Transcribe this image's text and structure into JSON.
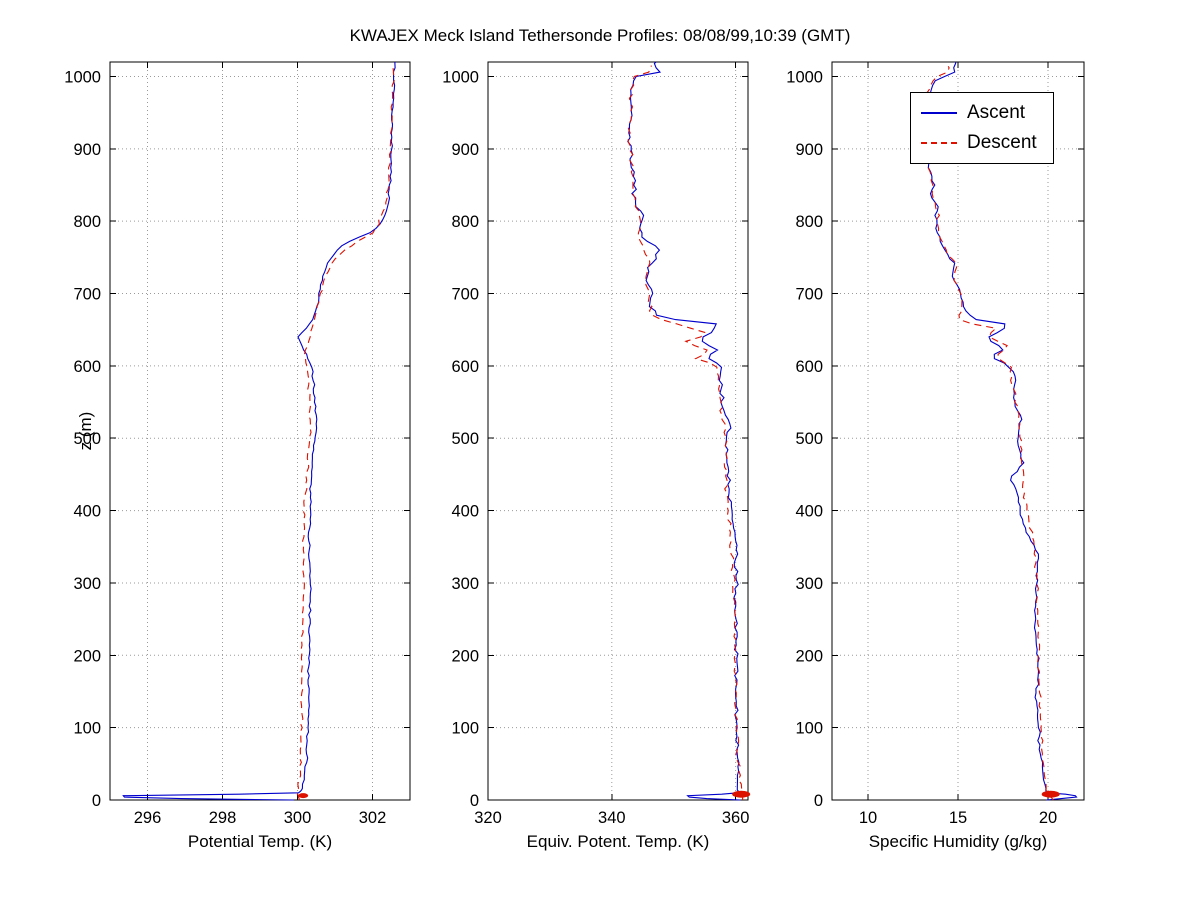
{
  "title": "KWAJEX Meck Island Tethersonde Profiles: 08/08/99,10:39 (GMT)",
  "ylabel": "z (m)",
  "ylim": [
    0,
    1020
  ],
  "yticks": [
    0,
    100,
    200,
    300,
    400,
    500,
    600,
    700,
    800,
    900,
    1000
  ],
  "legend": {
    "ascent": "Ascent",
    "descent": "Descent",
    "position": "upper-right-panel-3"
  },
  "colors": {
    "ascent": "#0000cc",
    "descent": "#dd1100",
    "grid": "#9a9a9a",
    "axis": "#000000"
  },
  "chart_data": [
    {
      "type": "line",
      "id": "potential-temp",
      "xlabel": "Potential Temp. (K)",
      "xlim": [
        295,
        303
      ],
      "xticks": [
        296,
        298,
        300,
        302
      ],
      "grid": true,
      "noise": 0.04,
      "series": [
        {
          "key": "ascent",
          "name": "Ascent",
          "style": "solid",
          "points": [
            [
              0,
              299.9
            ],
            [
              3,
              295.4
            ],
            [
              6,
              295.35
            ],
            [
              9,
              300.0
            ],
            [
              15,
              300.15
            ],
            [
              60,
              300.25
            ],
            [
              120,
              300.3
            ],
            [
              180,
              300.3
            ],
            [
              240,
              300.32
            ],
            [
              300,
              300.35
            ],
            [
              360,
              300.3
            ],
            [
              420,
              300.35
            ],
            [
              480,
              300.42
            ],
            [
              520,
              300.5
            ],
            [
              560,
              300.45
            ],
            [
              600,
              300.38
            ],
            [
              625,
              300.15
            ],
            [
              640,
              300.02
            ],
            [
              655,
              300.3
            ],
            [
              670,
              300.45
            ],
            [
              690,
              300.55
            ],
            [
              710,
              300.62
            ],
            [
              730,
              300.72
            ],
            [
              750,
              300.9
            ],
            [
              765,
              301.15
            ],
            [
              775,
              301.5
            ],
            [
              785,
              301.95
            ],
            [
              795,
              302.2
            ],
            [
              810,
              302.35
            ],
            [
              840,
              302.45
            ],
            [
              880,
              302.5
            ],
            [
              920,
              302.52
            ],
            [
              960,
              302.55
            ],
            [
              1000,
              302.58
            ],
            [
              1020,
              302.6
            ]
          ]
        },
        {
          "key": "descent",
          "name": "Descent",
          "style": "dashed",
          "points": [
            [
              0,
              300.05
            ],
            [
              8,
              300.0
            ],
            [
              30,
              300.05
            ],
            [
              80,
              300.1
            ],
            [
              150,
              300.12
            ],
            [
              220,
              300.12
            ],
            [
              300,
              300.18
            ],
            [
              360,
              300.15
            ],
            [
              420,
              300.2
            ],
            [
              470,
              300.28
            ],
            [
              510,
              300.35
            ],
            [
              550,
              300.32
            ],
            [
              590,
              300.28
            ],
            [
              615,
              300.18
            ],
            [
              635,
              300.3
            ],
            [
              655,
              300.42
            ],
            [
              675,
              300.5
            ],
            [
              695,
              300.6
            ],
            [
              715,
              300.7
            ],
            [
              735,
              300.85
            ],
            [
              750,
              301.05
            ],
            [
              762,
              301.3
            ],
            [
              772,
              301.6
            ],
            [
              782,
              301.95
            ],
            [
              795,
              302.15
            ],
            [
              815,
              302.3
            ],
            [
              845,
              302.42
            ],
            [
              885,
              302.48
            ],
            [
              925,
              302.5
            ],
            [
              965,
              302.53
            ],
            [
              1005,
              302.56
            ],
            [
              1015,
              302.58
            ]
          ]
        }
      ],
      "markers": [
        {
          "series": "descent",
          "x": 300.15,
          "z": 6,
          "rx": 5,
          "ry": 2.5
        }
      ]
    },
    {
      "type": "line",
      "id": "equiv-potent-temp",
      "xlabel": "Equiv. Potent. Temp. (K)",
      "xlim": [
        320,
        362
      ],
      "xticks": [
        320,
        340,
        360
      ],
      "grid": true,
      "noise": 0.4,
      "series": [
        {
          "key": "ascent",
          "name": "Ascent",
          "style": "solid",
          "points": [
            [
              0,
              360.8
            ],
            [
              3,
              352.5
            ],
            [
              6,
              352.3
            ],
            [
              9,
              360.4
            ],
            [
              20,
              360.4
            ],
            [
              80,
              360.2
            ],
            [
              140,
              360.1
            ],
            [
              200,
              360.2
            ],
            [
              260,
              359.9
            ],
            [
              320,
              360.1
            ],
            [
              350,
              360.2
            ],
            [
              380,
              359.6
            ],
            [
              410,
              359.2
            ],
            [
              440,
              358.9
            ],
            [
              470,
              358.6
            ],
            [
              500,
              358.5
            ],
            [
              515,
              359.4
            ],
            [
              535,
              358.2
            ],
            [
              560,
              357.8
            ],
            [
              585,
              357.6
            ],
            [
              600,
              357.9
            ],
            [
              612,
              355.2
            ],
            [
              622,
              357.1
            ],
            [
              636,
              354.1
            ],
            [
              648,
              356.6
            ],
            [
              658,
              357.2
            ],
            [
              664,
              350.2
            ],
            [
              670,
              347.2
            ],
            [
              682,
              346.2
            ],
            [
              700,
              346.6
            ],
            [
              718,
              345.6
            ],
            [
              736,
              346.1
            ],
            [
              752,
              347.3
            ],
            [
              764,
              347.6
            ],
            [
              776,
              345.2
            ],
            [
              790,
              344.6
            ],
            [
              806,
              344.9
            ],
            [
              822,
              344.0
            ],
            [
              838,
              343.6
            ],
            [
              856,
              343.9
            ],
            [
              874,
              343.3
            ],
            [
              892,
              343.1
            ],
            [
              910,
              342.7
            ],
            [
              930,
              342.9
            ],
            [
              950,
              343.2
            ],
            [
              970,
              343.0
            ],
            [
              990,
              343.3
            ],
            [
              1000,
              343.6
            ],
            [
              1006,
              347.5
            ],
            [
              1014,
              347.0
            ],
            [
              1020,
              347.2
            ]
          ]
        },
        {
          "key": "descent",
          "name": "Descent",
          "style": "dashed",
          "points": [
            [
              0,
              361.2
            ],
            [
              10,
              361.0
            ],
            [
              40,
              360.6
            ],
            [
              100,
              360.1
            ],
            [
              160,
              360.0
            ],
            [
              220,
              359.9
            ],
            [
              280,
              359.8
            ],
            [
              340,
              359.5
            ],
            [
              380,
              359.0
            ],
            [
              420,
              358.6
            ],
            [
              460,
              358.4
            ],
            [
              500,
              358.3
            ],
            [
              540,
              357.7
            ],
            [
              575,
              357.2
            ],
            [
              600,
              357.0
            ],
            [
              610,
              353.6
            ],
            [
              620,
              356.1
            ],
            [
              633,
              351.6
            ],
            [
              644,
              355.6
            ],
            [
              654,
              352.1
            ],
            [
              661,
              349.1
            ],
            [
              668,
              346.6
            ],
            [
              685,
              346.1
            ],
            [
              705,
              345.9
            ],
            [
              725,
              345.3
            ],
            [
              745,
              346.3
            ],
            [
              765,
              344.9
            ],
            [
              785,
              344.3
            ],
            [
              805,
              344.6
            ],
            [
              825,
              343.9
            ],
            [
              845,
              343.6
            ],
            [
              865,
              343.5
            ],
            [
              885,
              343.1
            ],
            [
              905,
              342.9
            ],
            [
              925,
              342.7
            ],
            [
              945,
              343.1
            ],
            [
              965,
              342.9
            ],
            [
              985,
              343.3
            ],
            [
              1000,
              343.8
            ],
            [
              1008,
              346.3
            ],
            [
              1015,
              346.5
            ]
          ]
        }
      ],
      "markers": [
        {
          "series": "descent",
          "x": 360.9,
          "z": 8,
          "rx": 9,
          "ry": 3.5
        }
      ]
    },
    {
      "type": "line",
      "id": "specific-humidity",
      "xlabel": "Specific Humidity (g/kg)",
      "xlim": [
        8,
        22
      ],
      "xticks": [
        10,
        15,
        20
      ],
      "grid": true,
      "noise": 0.1,
      "series": [
        {
          "key": "ascent",
          "name": "Ascent",
          "style": "solid",
          "points": [
            [
              0,
              19.9
            ],
            [
              4,
              21.6
            ],
            [
              7,
              21.5
            ],
            [
              10,
              19.9
            ],
            [
              40,
              19.7
            ],
            [
              90,
              19.5
            ],
            [
              140,
              19.35
            ],
            [
              190,
              19.5
            ],
            [
              240,
              19.25
            ],
            [
              290,
              19.35
            ],
            [
              340,
              19.45
            ],
            [
              365,
              18.9
            ],
            [
              390,
              18.5
            ],
            [
              420,
              18.35
            ],
            [
              445,
              17.95
            ],
            [
              465,
              18.6
            ],
            [
              495,
              18.3
            ],
            [
              525,
              18.5
            ],
            [
              555,
              18.05
            ],
            [
              585,
              18.25
            ],
            [
              600,
              17.85
            ],
            [
              613,
              16.85
            ],
            [
              624,
              17.65
            ],
            [
              638,
              16.55
            ],
            [
              649,
              17.45
            ],
            [
              658,
              17.65
            ],
            [
              664,
              16.0
            ],
            [
              674,
              15.45
            ],
            [
              688,
              15.25
            ],
            [
              706,
              15.05
            ],
            [
              724,
              14.7
            ],
            [
              742,
              14.85
            ],
            [
              756,
              14.3
            ],
            [
              772,
              14.0
            ],
            [
              788,
              13.8
            ],
            [
              804,
              13.75
            ],
            [
              820,
              13.85
            ],
            [
              836,
              13.5
            ],
            [
              852,
              13.65
            ],
            [
              870,
              13.4
            ],
            [
              888,
              13.45
            ],
            [
              906,
              13.3
            ],
            [
              924,
              13.25
            ],
            [
              942,
              13.5
            ],
            [
              960,
              13.6
            ],
            [
              978,
              13.5
            ],
            [
              996,
              13.75
            ],
            [
              1004,
              14.9
            ],
            [
              1014,
              14.8
            ],
            [
              1020,
              14.85
            ]
          ]
        },
        {
          "key": "descent",
          "name": "Descent",
          "style": "dashed",
          "points": [
            [
              0,
              20.3
            ],
            [
              10,
              19.95
            ],
            [
              50,
              19.7
            ],
            [
              110,
              19.6
            ],
            [
              170,
              19.5
            ],
            [
              230,
              19.45
            ],
            [
              290,
              19.4
            ],
            [
              345,
              19.3
            ],
            [
              385,
              18.95
            ],
            [
              425,
              18.65
            ],
            [
              465,
              18.55
            ],
            [
              505,
              18.45
            ],
            [
              545,
              18.3
            ],
            [
              580,
              18.0
            ],
            [
              600,
              17.9
            ],
            [
              612,
              17.05
            ],
            [
              628,
              17.7
            ],
            [
              642,
              16.6
            ],
            [
              653,
              17.2
            ],
            [
              660,
              15.2
            ],
            [
              667,
              15.0
            ],
            [
              680,
              15.3
            ],
            [
              700,
              15.15
            ],
            [
              720,
              14.75
            ],
            [
              740,
              14.9
            ],
            [
              758,
              14.35
            ],
            [
              776,
              14.05
            ],
            [
              794,
              13.85
            ],
            [
              812,
              13.9
            ],
            [
              830,
              13.65
            ],
            [
              850,
              13.6
            ],
            [
              870,
              13.45
            ],
            [
              890,
              13.35
            ],
            [
              910,
              13.25
            ],
            [
              930,
              13.2
            ],
            [
              952,
              13.4
            ],
            [
              974,
              13.3
            ],
            [
              996,
              13.6
            ],
            [
              1008,
              14.5
            ],
            [
              1014,
              14.4
            ]
          ]
        }
      ],
      "markers": [
        {
          "series": "descent",
          "x": 20.15,
          "z": 8,
          "rx": 9,
          "ry": 3.5
        }
      ]
    }
  ]
}
